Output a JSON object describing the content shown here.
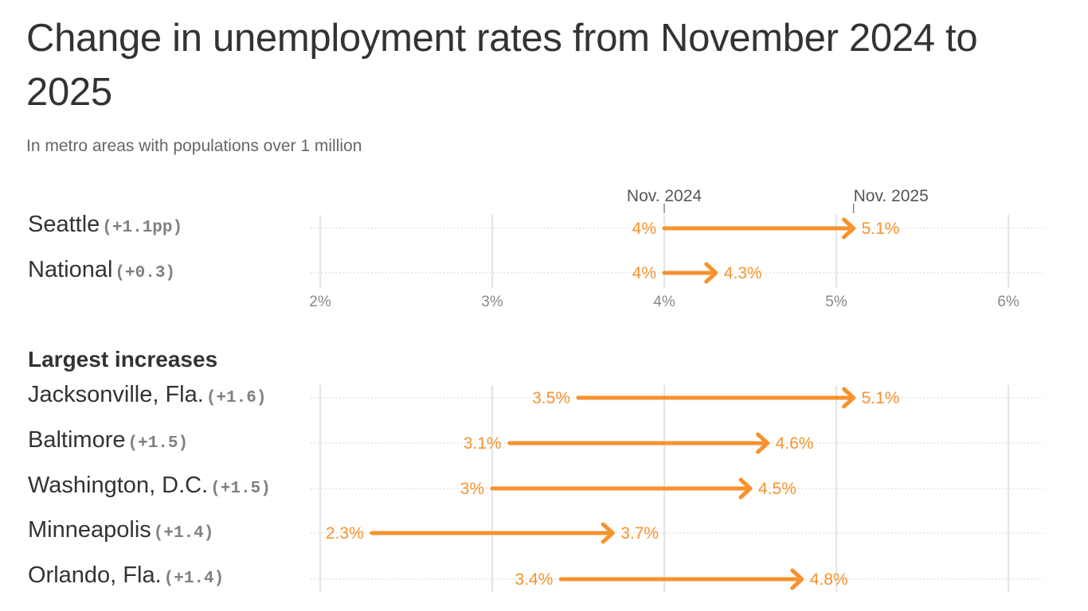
{
  "title": "Change in unemployment rates from November 2024 to 2025",
  "subtitle": "In metro areas with populations over 1 million",
  "section_label": "Largest increases",
  "colors": {
    "accent": "#f7922e",
    "grid": "#dcdcdc",
    "text": "#333333",
    "muted": "#808080"
  },
  "chart_data": {
    "type": "dumbbell-arrow",
    "title": "Change in unemployment rates from November 2024 to 2025",
    "subtitle": "In metro areas with populations over 1 million",
    "series_names": [
      "Nov. 2024",
      "Nov. 2025"
    ],
    "x_ticks": [
      "2%",
      "3%",
      "4%",
      "5%",
      "6%"
    ],
    "x_range": [
      2,
      6
    ],
    "top_rows": [
      {
        "name": "Seattle",
        "delta": "(+1.1pp)",
        "start": 4.0,
        "end": 5.1,
        "start_label": "4%",
        "end_label": "5.1%"
      },
      {
        "name": "National",
        "delta": "(+0.3)",
        "start": 4.0,
        "end": 4.3,
        "start_label": "4%",
        "end_label": "4.3%"
      }
    ],
    "increase_rows": [
      {
        "name": "Jacksonville, Fla.",
        "delta": "(+1.6)",
        "start": 3.5,
        "end": 5.1,
        "start_label": "3.5%",
        "end_label": "5.1%"
      },
      {
        "name": "Baltimore",
        "delta": "(+1.5)",
        "start": 3.1,
        "end": 4.6,
        "start_label": "3.1%",
        "end_label": "4.6%"
      },
      {
        "name": "Washington, D.C.",
        "delta": "(+1.5)",
        "start": 3.0,
        "end": 4.5,
        "start_label": "3%",
        "end_label": "4.5%"
      },
      {
        "name": "Minneapolis",
        "delta": "(+1.4)",
        "start": 2.3,
        "end": 3.7,
        "start_label": "2.3%",
        "end_label": "3.7%"
      },
      {
        "name": "Orlando, Fla.",
        "delta": "(+1.4)",
        "start": 3.4,
        "end": 4.8,
        "start_label": "3.4%",
        "end_label": "4.8%"
      }
    ]
  }
}
